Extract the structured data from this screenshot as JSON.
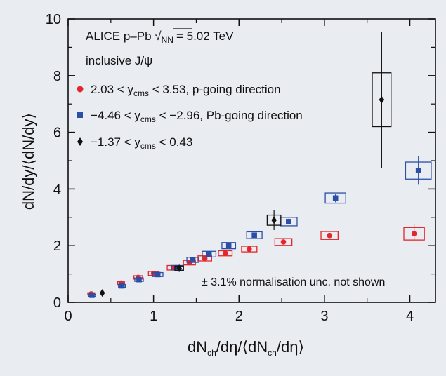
{
  "chart_data": {
    "type": "scatter",
    "title": "",
    "xlabel": "dN_ch/dη/⟨dN_ch/dη⟩",
    "ylabel": "dN/dy/⟨dN/dy⟩",
    "xlim": [
      0,
      4.3
    ],
    "ylim": [
      0,
      10
    ],
    "x_ticks": [
      "0",
      "1",
      "2",
      "3",
      "4"
    ],
    "y_ticks": [
      "0",
      "2",
      "4",
      "6",
      "8",
      "10"
    ],
    "grid": false,
    "legend_position": "top-left",
    "header": {
      "line1_prefix": "ALICE p–Pb",
      "line1_sqrt_sub": "NN",
      "line1_suffix": "= 5.02 TeV",
      "line2": "inclusive J/ψ"
    },
    "note": "± 3.1% normalisation unc. not shown",
    "colors": {
      "red": "#e3262b",
      "blue": "#2c4fa6",
      "black": "#111111",
      "background": "#e9ecf1"
    },
    "series": [
      {
        "name": "2.03 < y_cms < 3.53, p-going direction",
        "label_pre": "2.03 < y",
        "label_sub": "cms",
        "label_post": " < 3.53, p-going direction",
        "marker": "circle",
        "color": "#e3262b",
        "x": [
          0.27,
          0.62,
          0.82,
          1.0,
          1.23,
          1.42,
          1.6,
          1.84,
          2.12,
          2.52,
          3.06,
          4.05
        ],
        "y": [
          0.3,
          0.68,
          0.88,
          1.02,
          1.22,
          1.4,
          1.55,
          1.73,
          1.88,
          2.13,
          2.36,
          2.42
        ],
        "err_lo": [
          0.03,
          0.04,
          0.04,
          0.04,
          0.05,
          0.05,
          0.05,
          0.05,
          0.06,
          0.08,
          0.08,
          0.25
        ],
        "err_hi": [
          0.03,
          0.04,
          0.04,
          0.04,
          0.05,
          0.05,
          0.05,
          0.05,
          0.06,
          0.08,
          0.08,
          0.35
        ],
        "sys_dx": [
          0.04,
          0.04,
          0.05,
          0.06,
          0.07,
          0.07,
          0.08,
          0.08,
          0.09,
          0.1,
          0.1,
          0.12
        ],
        "sys_dy": [
          0.04,
          0.05,
          0.06,
          0.07,
          0.08,
          0.08,
          0.09,
          0.09,
          0.1,
          0.12,
          0.14,
          0.22
        ]
      },
      {
        "name": "−4.46 < y_cms < −2.96, Pb-going direction",
        "label_pre": "−4.46 < y",
        "label_sub": "cms",
        "label_post": " < −2.96, Pb-going direction",
        "marker": "square",
        "color": "#2c4fa6",
        "x": [
          0.28,
          0.63,
          0.83,
          1.05,
          1.28,
          1.46,
          1.65,
          1.88,
          2.18,
          2.58,
          3.13,
          4.1
        ],
        "y": [
          0.25,
          0.58,
          0.8,
          0.98,
          1.22,
          1.5,
          1.7,
          2.0,
          2.37,
          2.85,
          3.68,
          4.65
        ],
        "err_lo": [
          0.03,
          0.04,
          0.04,
          0.05,
          0.05,
          0.05,
          0.06,
          0.06,
          0.08,
          0.1,
          0.15,
          0.5
        ],
        "err_hi": [
          0.03,
          0.04,
          0.04,
          0.05,
          0.05,
          0.05,
          0.06,
          0.06,
          0.08,
          0.1,
          0.15,
          0.5
        ],
        "sys_dx": [
          0.04,
          0.04,
          0.05,
          0.06,
          0.07,
          0.07,
          0.08,
          0.08,
          0.09,
          0.1,
          0.12,
          0.15
        ],
        "sys_dy": [
          0.04,
          0.05,
          0.06,
          0.07,
          0.08,
          0.09,
          0.1,
          0.11,
          0.12,
          0.15,
          0.18,
          0.3
        ]
      },
      {
        "name": "−1.37 < y_cms < 0.43",
        "label_pre": "−1.37 < y",
        "label_sub": "cms",
        "label_post": " < 0.43",
        "marker": "diamond",
        "color": "#111111",
        "x": [
          0.4,
          1.3,
          2.41,
          3.67
        ],
        "y": [
          0.33,
          1.2,
          2.9,
          7.15
        ],
        "err_lo": [
          0.05,
          0.1,
          0.35,
          2.4
        ],
        "err_hi": [
          0.05,
          0.1,
          0.35,
          2.4
        ],
        "sys_dx": [
          0.0,
          0.05,
          0.08,
          0.11
        ],
        "sys_dy": [
          0.0,
          0.08,
          0.18,
          0.95
        ]
      }
    ]
  }
}
